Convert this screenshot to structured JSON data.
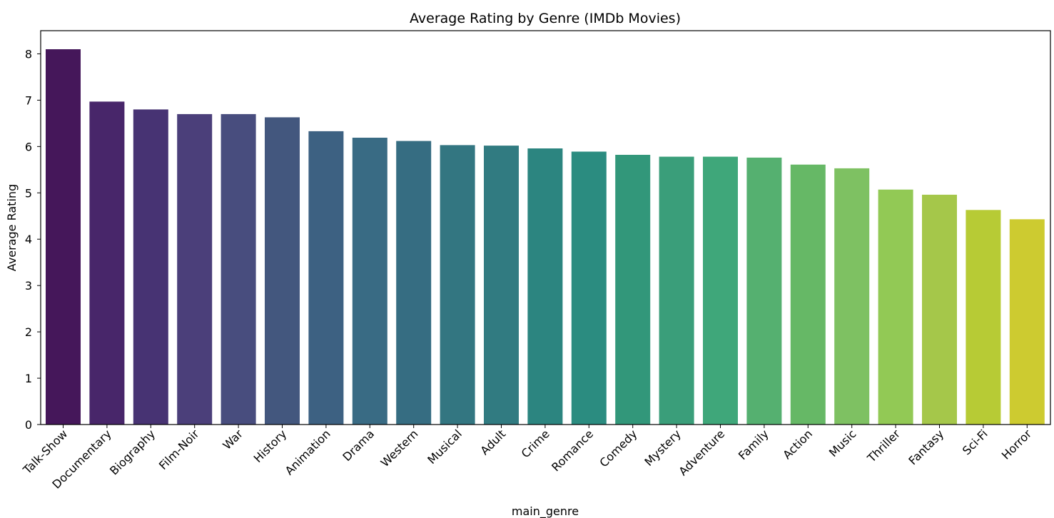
{
  "chart_data": {
    "type": "bar",
    "title": "Average Rating by Genre (IMDb Movies)",
    "xlabel": "main_genre",
    "ylabel": "Average Rating",
    "ylim": [
      0,
      8.5
    ],
    "yticks": [
      0,
      1,
      2,
      3,
      4,
      5,
      6,
      7,
      8
    ],
    "grid": false,
    "colormap": "viridis",
    "categories": [
      "Talk-Show",
      "Documentary",
      "Biography",
      "Film-Noir",
      "War",
      "History",
      "Animation",
      "Drama",
      "Western",
      "Musical",
      "Adult",
      "Crime",
      "Romance",
      "Comedy",
      "Mystery",
      "Adventure",
      "Family",
      "Action",
      "Music",
      "Thriller",
      "Fantasy",
      "Sci-Fi",
      "Horror"
    ],
    "values": [
      8.1,
      6.97,
      6.8,
      6.7,
      6.7,
      6.63,
      6.33,
      6.19,
      6.12,
      6.03,
      6.02,
      5.96,
      5.89,
      5.82,
      5.78,
      5.78,
      5.76,
      5.61,
      5.53,
      5.07,
      4.96,
      4.63,
      4.43
    ],
    "colors": [
      "#45175a",
      "#48266a",
      "#473373",
      "#4b3f7a",
      "#484d7e",
      "#43577e",
      "#3d6182",
      "#396b84",
      "#366d82",
      "#337681",
      "#317b81",
      "#2c8580",
      "#2b8c80",
      "#32977a",
      "#3a9e7a",
      "#3fa77a",
      "#55b070",
      "#66b866",
      "#7ec162",
      "#92c955",
      "#a5c74a",
      "#b7cb35",
      "#cdcb30"
    ]
  }
}
